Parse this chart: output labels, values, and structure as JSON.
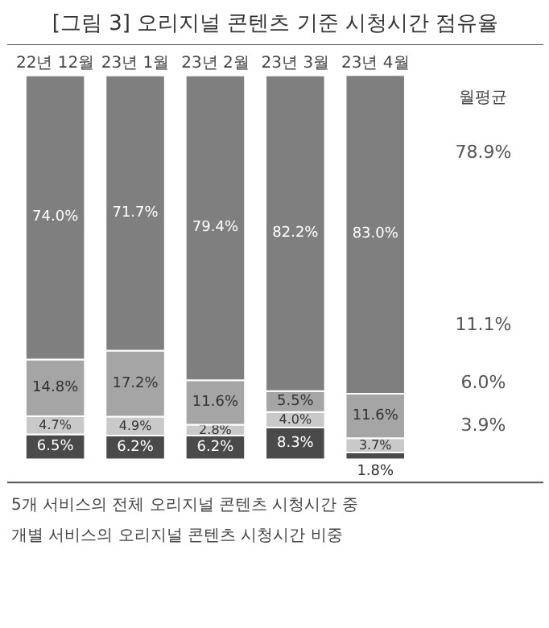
{
  "chart_data": {
    "type": "bar",
    "stacked": true,
    "title": "[그림 3] 오리지널 콘텐츠 기준 시청시간 점유율",
    "categories": [
      "22년 12월",
      "23년 1월",
      "23년 2월",
      "23년 3월",
      "23년 4월"
    ],
    "series": [
      {
        "color": "#4a4a4a",
        "values": [
          6.5,
          6.2,
          6.2,
          8.3,
          1.8
        ],
        "value_labels": [
          "6.5%",
          "6.2%",
          "6.2%",
          "8.3%",
          "1.8%"
        ]
      },
      {
        "color": "#c9c9c9",
        "values": [
          4.7,
          4.9,
          2.8,
          4.0,
          3.7
        ],
        "value_labels": [
          "4.7%",
          "4.9%",
          "2.8%",
          "4.0%",
          "3.7%"
        ]
      },
      {
        "color": "#a5a5a5",
        "values": [
          14.8,
          17.2,
          11.6,
          5.5,
          11.6
        ],
        "value_labels": [
          "14.8%",
          "17.2%",
          "11.6%",
          "5.5%",
          "11.6%"
        ]
      },
      {
        "color": "#7f7f7f",
        "values": [
          74.0,
          71.7,
          79.4,
          82.2,
          83.0
        ],
        "value_labels": [
          "74.0%",
          "71.7%",
          "79.4%",
          "82.2%",
          "83.0%"
        ]
      }
    ],
    "grid": false,
    "annotations": [
      "월평균",
      "78.9%",
      "11.1%",
      "6.0%",
      "3.9%",
      "5개 서비스의 전체 오리지널 콘텐츠 시청시간 중 개별 서비스의 오리지널 콘텐츠 시청시간 비중"
    ]
  }
}
